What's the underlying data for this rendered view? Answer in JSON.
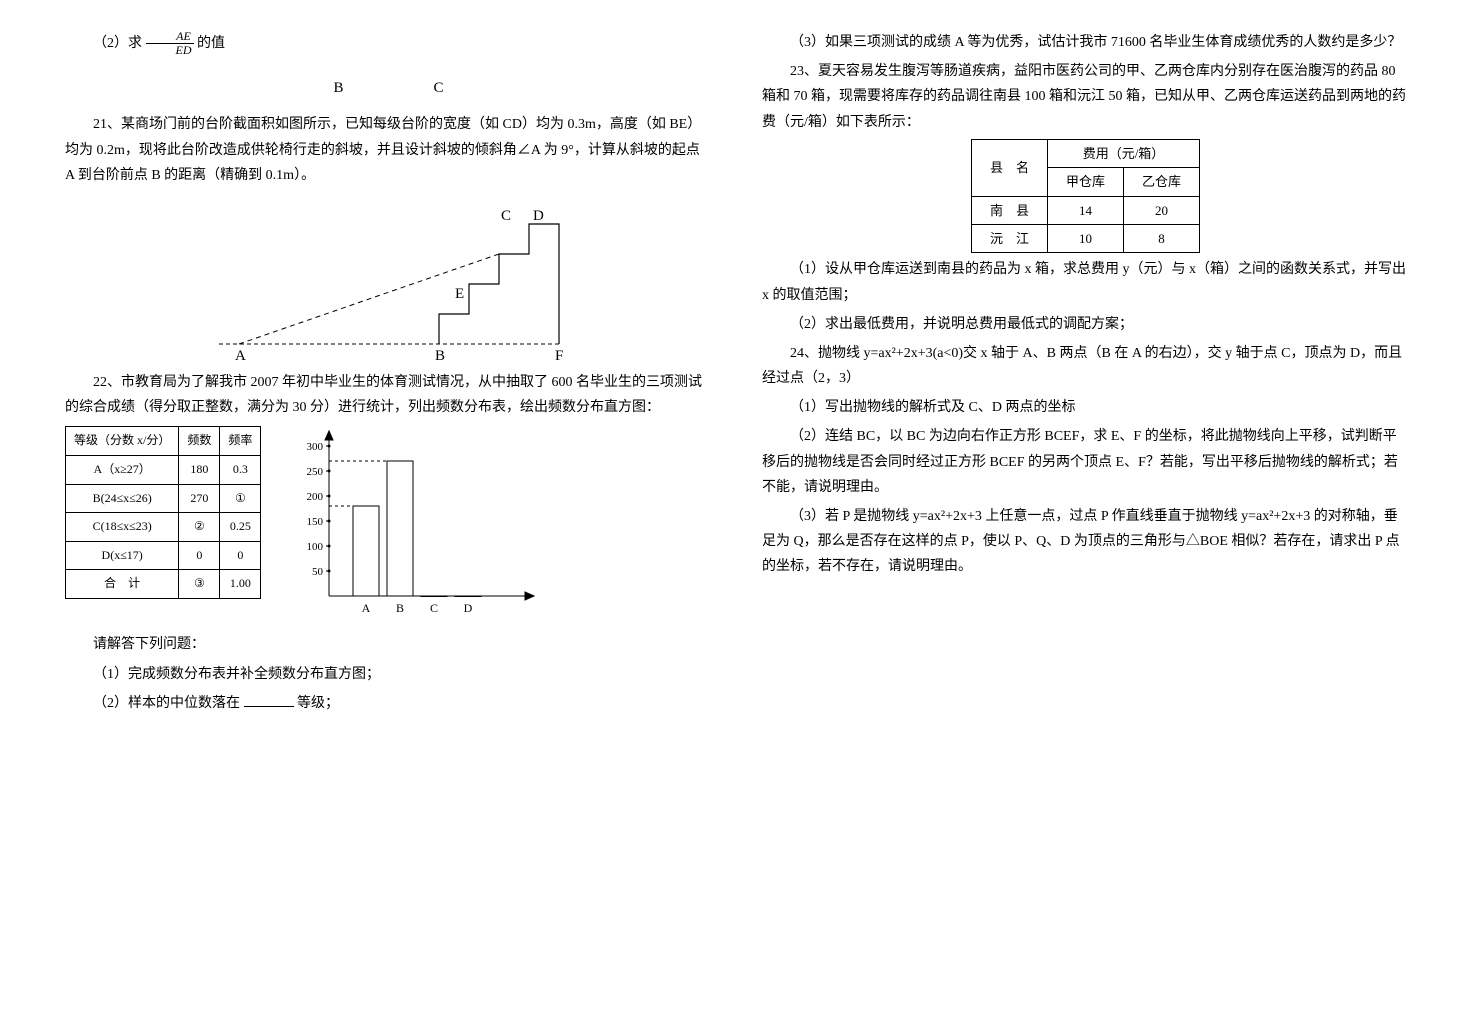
{
  "left": {
    "q20_2": "（2）求",
    "q20_2b": "的值",
    "bc_line": "B      C",
    "q21": "21、某商场门前的台阶截面积如图所示，已知每级台阶的宽度（如 CD）均为 0.3m，高度（如 BE）均为 0.2m，现将此台阶改造成供轮椅行走的斜坡，并且设计斜坡的倾斜角∠A 为 9°，计算从斜坡的起点 A 到台阶前点 B 的距离（精确到 0.1m）。",
    "stair": {
      "C": "C",
      "D": "D",
      "E": "E",
      "A": "A",
      "B": "B",
      "F": "F"
    },
    "q22": "22、市教育局为了解我市 2007 年初中毕业生的体育测试情况，从中抽取了 600 名毕业生的三项测试的综合成绩（得分取正整数，满分为 30 分）进行统计，列出频数分布表，绘出频数分布直方图：",
    "table": {
      "h1": "等级（分数 x/分）",
      "h2": "频数",
      "h3": "频率",
      "r1c1": "A（x≥27）",
      "r1c2": "180",
      "r1c3": "0.3",
      "r2c1": "B(24≤x≤26)",
      "r2c2": "270",
      "r2c3": "①",
      "r3c1": "C(18≤x≤23)",
      "r3c2": "②",
      "r3c3": "0.25",
      "r4c1": "D(x≤17)",
      "r4c2": "0",
      "r4c3": "0",
      "r5c1": "合　计",
      "r5c2": "③",
      "r5c3": "1.00"
    },
    "hist": {
      "ticks": [
        "300",
        "250",
        "200",
        "150",
        "100",
        "50"
      ],
      "bars": [
        180,
        270,
        0,
        0
      ],
      "xlabels": [
        "A",
        "B",
        "C",
        "D"
      ]
    },
    "ans_intro": "请解答下列问题：",
    "a1": "（1）完成频数分布表并补全频数分布直方图；",
    "a2_a": "（2）样本的中位数落在",
    "a2_b": "等级；"
  },
  "right": {
    "a3": "（3）如果三项测试的成绩 A 等为优秀，试估计我市 71600 名毕业生体育成绩优秀的人数约是多少？",
    "q23": "23、夏天容易发生腹泻等肠道疾病，益阳市医药公司的甲、乙两仓库内分别存在医治腹泻的药品 80 箱和 70 箱，现需要将库存的药品调往南县 100 箱和沅江 50 箱，已知从甲、乙两仓库运送药品到两地的药费（元/箱）如下表所示：",
    "fee": {
      "h_county": "县　名",
      "h_fee": "费用（元/箱）",
      "h_a": "甲仓库",
      "h_b": "乙仓库",
      "r1c1": "南　县",
      "r1c2": "14",
      "r1c3": "20",
      "r2c1": "沅　江",
      "r2c2": "10",
      "r2c3": "8"
    },
    "q23_1": "（1）设从甲仓库运送到南县的药品为 x 箱，求总费用 y（元）与 x（箱）之间的函数关系式，并写出 x 的取值范围；",
    "q23_2": "（2）求出最低费用，并说明总费用最低式的调配方案；",
    "q24": "24、抛物线 y=ax²+2x+3(a<0)交 x 轴于 A、B 两点（B 在 A 的右边），交 y 轴于点 C，顶点为 D，而且经过点（2，3）",
    "q24_1": "（1）写出抛物线的解析式及 C、D 两点的坐标",
    "q24_2": "（2）连结 BC，以 BC 为边向右作正方形 BCEF，求 E、F 的坐标，将此抛物线向上平移，试判断平移后的抛物线是否会同时经过正方形 BCEF 的另两个顶点 E、F？若能，写出平移后抛物线的解析式；若不能，请说明理由。",
    "q24_3": "（3）若 P 是抛物线 y=ax²+2x+3 上任意一点，过点 P 作直线垂直于抛物线 y=ax²+2x+3 的对称轴，垂足为 Q，那么是否存在这样的点 P，使以 P、Q、D 为顶点的三角形与△BOE 相似？若存在，请求出 P 点的坐标，若不存在，请说明理由。"
  }
}
